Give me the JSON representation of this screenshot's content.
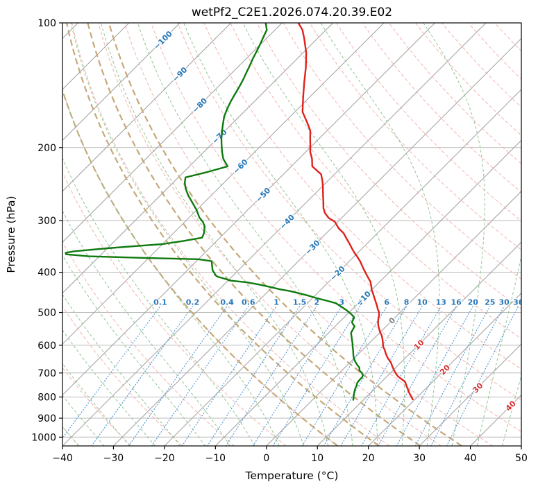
{
  "chart_data": {
    "type": "skewt_log_p",
    "title": "wetPf2_C2E1.2026.074.20.39.E02",
    "xlabel": "Temperature (°C)",
    "ylabel": "Pressure (hPa)",
    "xlim": [
      -40,
      50
    ],
    "x_ticks": [
      -40,
      -30,
      -20,
      -10,
      0,
      10,
      20,
      30,
      40,
      50
    ],
    "pressure_lim": [
      100,
      1050
    ],
    "pressure_ticks": [
      100,
      200,
      300,
      400,
      500,
      600,
      700,
      800,
      900,
      1000
    ],
    "skew_degrees": 45,
    "isotherms_c": {
      "start": -120,
      "end": 50,
      "step": 10
    },
    "isotherm_labels": [
      {
        "t": -100,
        "p": 110
      },
      {
        "t": -90,
        "p": 133
      },
      {
        "t": -80,
        "p": 158
      },
      {
        "t": -70,
        "p": 188
      },
      {
        "t": -60,
        "p": 222
      },
      {
        "t": -50,
        "p": 260
      },
      {
        "t": -40,
        "p": 302
      },
      {
        "t": -30,
        "p": 348
      },
      {
        "t": -20,
        "p": 402
      },
      {
        "t": -10,
        "p": 462
      },
      {
        "t": 0,
        "p": 523
      },
      {
        "t": 10,
        "p": 598
      },
      {
        "t": 20,
        "p": 687
      },
      {
        "t": 30,
        "p": 760
      },
      {
        "t": 40,
        "p": 840
      }
    ],
    "dry_adiabats_c": {
      "start": -40,
      "end": 200,
      "step": 10
    },
    "highlight_dry_adiabats_c": [
      10,
      18,
      26,
      34
    ],
    "moist_adiabats_c": {
      "start": -40,
      "end": 45,
      "step": 5
    },
    "mixing_ratio_g_kg": [
      0.1,
      0.2,
      0.4,
      0.6,
      1,
      1.5,
      2,
      3,
      4,
      6,
      8,
      10,
      13,
      16,
      20,
      25,
      30,
      36
    ],
    "mixing_ratio_top_hpa": 483,
    "mixing_ratio_label_hpa": 472,
    "temperature_curve": [
      [
        811,
        19.6
      ],
      [
        785,
        17.8
      ],
      [
        760,
        16.2
      ],
      [
        735,
        14.6
      ],
      [
        713,
        12.1
      ],
      [
        695,
        10.6
      ],
      [
        678,
        9.3
      ],
      [
        660,
        8.0
      ],
      [
        645,
        6.6
      ],
      [
        630,
        5.4
      ],
      [
        615,
        4.3
      ],
      [
        606,
        3.5
      ],
      [
        595,
        2.8
      ],
      [
        580,
        1.8
      ],
      [
        568,
        0.9
      ],
      [
        556,
        -0.2
      ],
      [
        545,
        -1.1
      ],
      [
        535,
        -1.9
      ],
      [
        526,
        -2.5
      ],
      [
        518,
        -3.0
      ],
      [
        509,
        -3.5
      ],
      [
        500,
        -4.1
      ],
      [
        491,
        -5.0
      ],
      [
        481,
        -5.9
      ],
      [
        471,
        -6.9
      ],
      [
        461,
        -7.9
      ],
      [
        451,
        -8.9
      ],
      [
        441,
        -10.0
      ],
      [
        431,
        -10.9
      ],
      [
        421,
        -11.9
      ],
      [
        412,
        -13.1
      ],
      [
        403,
        -14.3
      ],
      [
        394,
        -15.5
      ],
      [
        385,
        -16.7
      ],
      [
        376,
        -17.9
      ],
      [
        367,
        -19.3
      ],
      [
        358,
        -20.8
      ],
      [
        349,
        -22.2
      ],
      [
        340,
        -23.6
      ],
      [
        331,
        -25.1
      ],
      [
        322,
        -26.6
      ],
      [
        313,
        -28.6
      ],
      [
        302,
        -30.6
      ],
      [
        296,
        -32.5
      ],
      [
        288,
        -34.2
      ],
      [
        280,
        -35.5
      ],
      [
        270,
        -36.8
      ],
      [
        260,
        -38.2
      ],
      [
        250,
        -39.6
      ],
      [
        241,
        -41.0
      ],
      [
        232,
        -42.6
      ],
      [
        222,
        -45.9
      ],
      [
        213,
        -47.4
      ],
      [
        205,
        -49.1
      ],
      [
        197,
        -50.5
      ],
      [
        190,
        -51.8
      ],
      [
        182,
        -53.3
      ],
      [
        174,
        -55.5
      ],
      [
        164,
        -58.5
      ],
      [
        151,
        -61.3
      ],
      [
        139,
        -64.0
      ],
      [
        128,
        -66.6
      ],
      [
        118,
        -69.4
      ],
      [
        109,
        -72.6
      ],
      [
        104,
        -74.6
      ],
      [
        100,
        -76.8
      ]
    ],
    "dewpoint_curve": [
      [
        813,
        8.0
      ],
      [
        790,
        7.1
      ],
      [
        768,
        6.3
      ],
      [
        750,
        5.8
      ],
      [
        738,
        5.4
      ],
      [
        726,
        5.3
      ],
      [
        717,
        5.3
      ],
      [
        708,
        5.0
      ],
      [
        700,
        4.4
      ],
      [
        690,
        3.4
      ],
      [
        680,
        2.9
      ],
      [
        668,
        1.8
      ],
      [
        655,
        0.7
      ],
      [
        640,
        -0.4
      ],
      [
        625,
        -1.3
      ],
      [
        615,
        -1.9
      ],
      [
        606,
        -2.5
      ],
      [
        593,
        -3.3
      ],
      [
        580,
        -4.2
      ],
      [
        570,
        -4.9
      ],
      [
        560,
        -5.6
      ],
      [
        550,
        -5.9
      ],
      [
        540,
        -6.2
      ],
      [
        534,
        -6.9
      ],
      [
        528,
        -7.5
      ],
      [
        520,
        -7.8
      ],
      [
        514,
        -8.0
      ],
      [
        505,
        -9.2
      ],
      [
        494,
        -10.9
      ],
      [
        485,
        -12.5
      ],
      [
        475,
        -14.4
      ],
      [
        469,
        -16.5
      ],
      [
        462,
        -19.1
      ],
      [
        455,
        -21.4
      ],
      [
        449,
        -23.8
      ],
      [
        444,
        -25.8
      ],
      [
        440,
        -27.9
      ],
      [
        434,
        -30.5
      ],
      [
        428,
        -33.2
      ],
      [
        423,
        -36.0
      ],
      [
        419,
        -39.4
      ],
      [
        414,
        -41.2
      ],
      [
        410,
        -42.8
      ],
      [
        406,
        -43.6
      ],
      [
        402,
        -44.1
      ],
      [
        398,
        -44.7
      ],
      [
        394,
        -45.2
      ],
      [
        390,
        -45.6
      ],
      [
        386,
        -46.0
      ],
      [
        381,
        -46.5
      ],
      [
        376,
        -47.0
      ],
      [
        372,
        -50.0
      ],
      [
        369,
        -62.0
      ],
      [
        366,
        -72.0
      ],
      [
        362,
        -76.9
      ],
      [
        359,
        -77.3
      ],
      [
        356,
        -76.0
      ],
      [
        350,
        -70.0
      ],
      [
        345,
        -64.0
      ],
      [
        342,
        -60.0
      ],
      [
        336,
        -56.5
      ],
      [
        330,
        -53.5
      ],
      [
        322,
        -54.0
      ],
      [
        310,
        -55.2
      ],
      [
        302,
        -56.5
      ],
      [
        295,
        -58.0
      ],
      [
        283,
        -60.0
      ],
      [
        272,
        -62.2
      ],
      [
        261,
        -64.5
      ],
      [
        251,
        -66.4
      ],
      [
        243,
        -67.7
      ],
      [
        236,
        -68.6
      ],
      [
        229,
        -65.3
      ],
      [
        222,
        -62.5
      ],
      [
        213,
        -64.8
      ],
      [
        205,
        -66.4
      ],
      [
        197,
        -67.9
      ],
      [
        190,
        -69.2
      ],
      [
        182,
        -70.6
      ],
      [
        175,
        -71.8
      ],
      [
        168,
        -73.0
      ],
      [
        161,
        -73.9
      ],
      [
        155,
        -74.6
      ],
      [
        149,
        -75.2
      ],
      [
        143,
        -75.8
      ],
      [
        137,
        -76.5
      ],
      [
        132,
        -77.2
      ],
      [
        127,
        -77.9
      ],
      [
        122,
        -78.7
      ],
      [
        117,
        -79.4
      ],
      [
        112,
        -80.2
      ],
      [
        108,
        -80.9
      ],
      [
        104,
        -81.6
      ],
      [
        100,
        -83.2
      ],
      [
        97,
        -83.8
      ]
    ]
  },
  "style": {
    "background": "#ffffff",
    "spine": "#000000",
    "grid": "#b9b9b9",
    "isotherm": "#a6a6a6",
    "dry_adiabat": "#f2b4ae",
    "highlight_adiabat": "#c7a878",
    "moist_adiabat": "#92c492",
    "mixing_ratio": "#5a9bd4",
    "temperature": "#e0211b",
    "dewpoint": "#0e7a0e",
    "label_negative": "#2677b8",
    "label_zero": "#7f7f7f",
    "label_positive": "#d62f2f"
  }
}
